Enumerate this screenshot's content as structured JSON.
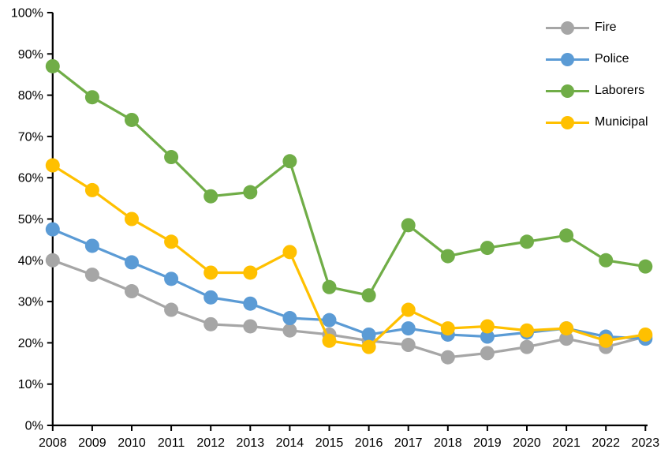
{
  "chart_data": {
    "type": "line",
    "title": "",
    "categories": [
      "2008",
      "2009",
      "2010",
      "2011",
      "2012",
      "2013",
      "2014",
      "2015",
      "2016",
      "2017",
      "2018",
      "2019",
      "2020",
      "2021",
      "2022",
      "2023"
    ],
    "y_axis": {
      "min": 0,
      "max": 100,
      "step": 10,
      "tick_labels": [
        "100%",
        "90%",
        "80%",
        "70%",
        "60%",
        "50%",
        "40%",
        "30%",
        "20%",
        "10%",
        "0%"
      ]
    },
    "grid": "off",
    "legend_position": "top-right",
    "axis_color": "#000000",
    "background": "#FFFFFF",
    "series": [
      {
        "name": "Fire",
        "color": "#A6A6A6",
        "values": [
          40,
          36.5,
          32.5,
          28,
          24.5,
          24,
          23,
          22,
          20.5,
          19.5,
          16.5,
          17.5,
          19,
          21,
          19,
          21.5
        ]
      },
      {
        "name": "Police",
        "color": "#5B9BD5",
        "values": [
          47.5,
          43.5,
          39.5,
          35.5,
          31,
          29.5,
          26,
          25.5,
          22,
          23.5,
          22,
          21.5,
          22.5,
          23.5,
          21.5,
          21
        ]
      },
      {
        "name": "Laborers",
        "color": "#70AD47",
        "values": [
          87,
          79.5,
          74,
          65,
          55.5,
          56.5,
          64,
          33.5,
          31.5,
          48.5,
          41,
          43,
          44.5,
          46,
          40,
          38.5
        ]
      },
      {
        "name": "Municipal",
        "color": "#FFC000",
        "values": [
          63,
          57,
          50,
          44.5,
          37,
          37,
          42,
          20.5,
          19,
          28,
          23.5,
          24,
          23,
          23.5,
          20.5,
          22
        ]
      }
    ]
  }
}
